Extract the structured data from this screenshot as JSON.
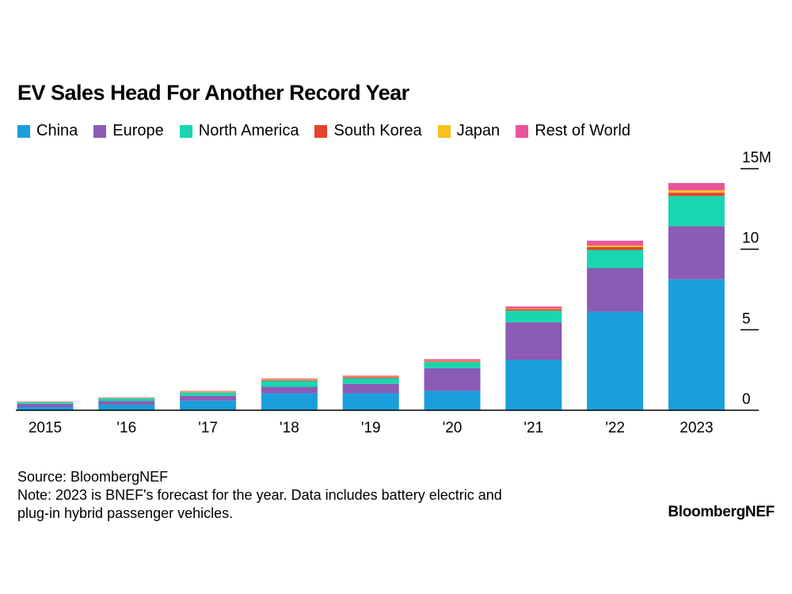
{
  "chart_data": {
    "type": "bar",
    "stacked": true,
    "title": "EV Sales Head For Another Record Year",
    "categories": [
      "2015",
      "'16",
      "'17",
      "'18",
      "'19",
      "'20",
      "'21",
      "'22",
      "2023"
    ],
    "series": [
      {
        "name": "China",
        "color": "#1a9fdc",
        "values": [
          0.2,
          0.35,
          0.6,
          1.05,
          1.06,
          1.21,
          3.13,
          6.12,
          8.13
        ]
      },
      {
        "name": "Europe",
        "color": "#8b5bb5",
        "values": [
          0.2,
          0.22,
          0.3,
          0.4,
          0.58,
          1.4,
          2.33,
          2.71,
          3.3
        ]
      },
      {
        "name": "North America",
        "color": "#19d6b0",
        "values": [
          0.1,
          0.17,
          0.2,
          0.38,
          0.35,
          0.38,
          0.72,
          1.13,
          1.88
        ]
      },
      {
        "name": "South Korea",
        "color": "#e8412c",
        "values": [
          0.01,
          0.01,
          0.02,
          0.04,
          0.05,
          0.05,
          0.1,
          0.17,
          0.2
        ]
      },
      {
        "name": "Japan",
        "color": "#f9c319",
        "values": [
          0.02,
          0.02,
          0.04,
          0.05,
          0.04,
          0.03,
          0.04,
          0.1,
          0.15
        ]
      },
      {
        "name": "Rest of World",
        "color": "#e9559c",
        "values": [
          0.02,
          0.03,
          0.04,
          0.05,
          0.07,
          0.1,
          0.13,
          0.3,
          0.45
        ]
      }
    ],
    "ylim": [
      0,
      15
    ],
    "yticks": [
      {
        "value": 0,
        "label": "0"
      },
      {
        "value": 5,
        "label": "5"
      },
      {
        "value": 10,
        "label": "10"
      },
      {
        "value": 15,
        "label": "15M"
      }
    ],
    "xlabel": "",
    "ylabel": "",
    "legend_position": "top-left",
    "grid": false
  },
  "footer": {
    "source": "Source: BloombergNEF",
    "note_line1": "Note: 2023 is BNEF's forecast for the year. Data includes battery electric and",
    "note_line2": "plug-in hybrid passenger vehicles."
  },
  "brand": "BloombergNEF"
}
